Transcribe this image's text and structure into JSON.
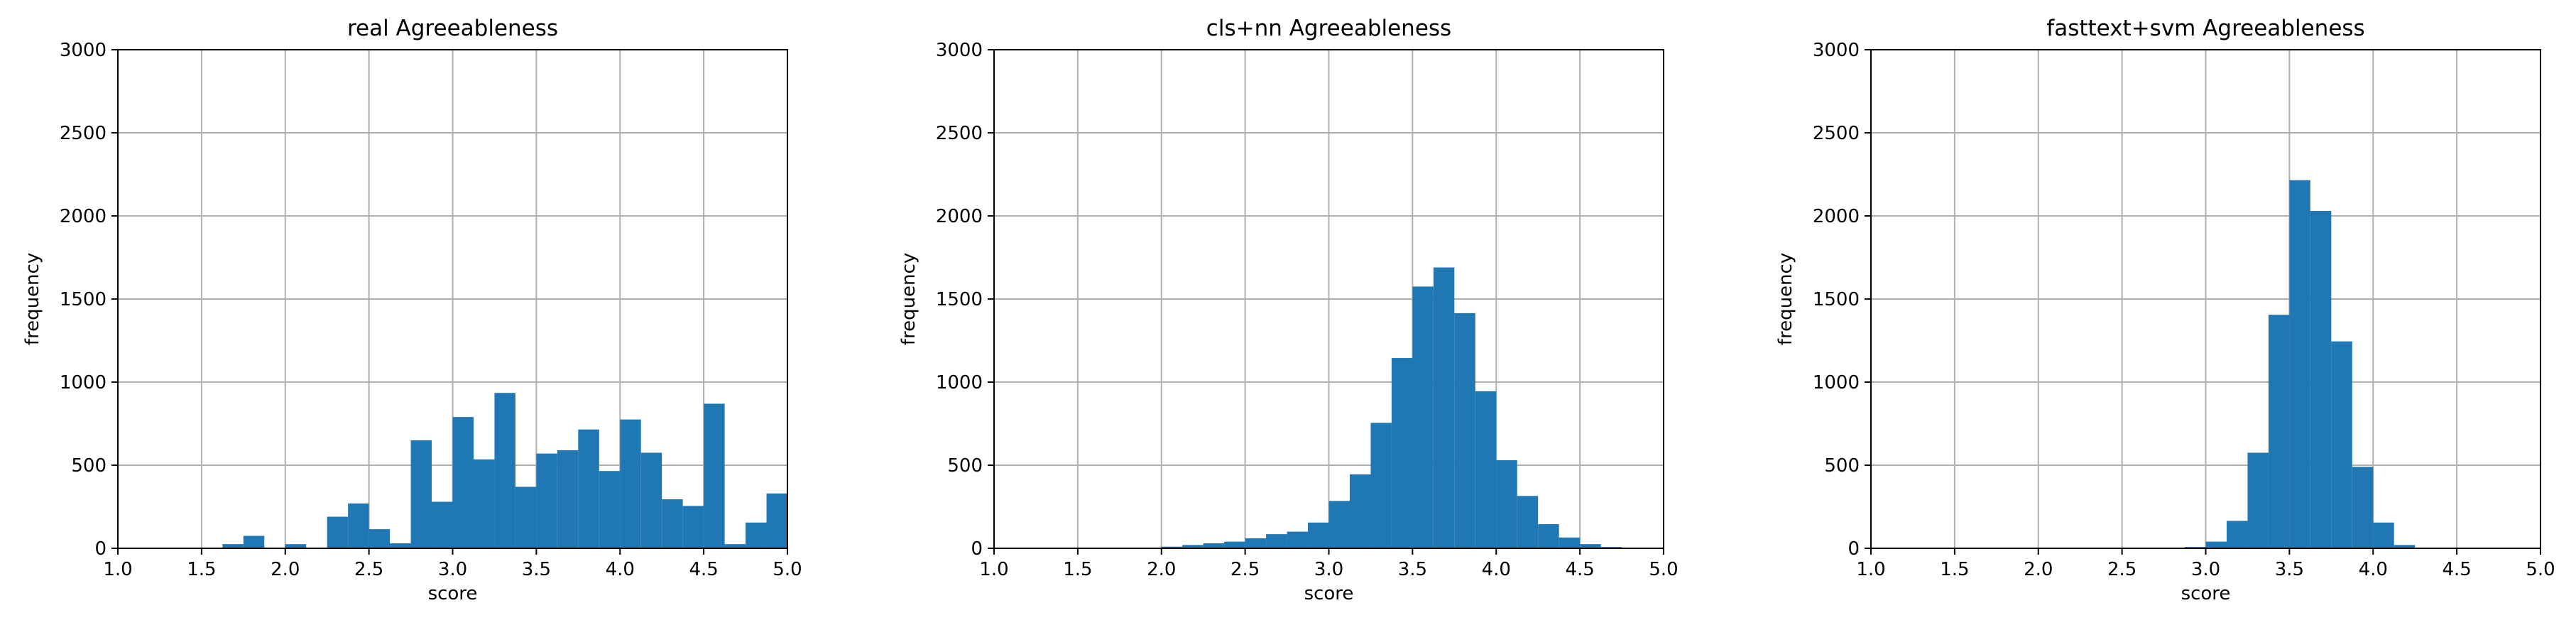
{
  "chart_data": [
    {
      "type": "bar",
      "title": "real Agreeableness",
      "xlabel": "score",
      "ylabel": "frequency",
      "xlim": [
        1.0,
        5.0
      ],
      "ylim": [
        0,
        3000
      ],
      "xticks": [
        "1.0",
        "1.5",
        "2.0",
        "2.5",
        "3.0",
        "3.5",
        "4.0",
        "4.5",
        "5.0"
      ],
      "yticks": [
        "0",
        "500",
        "1000",
        "1500",
        "2000",
        "2500",
        "3000"
      ],
      "grid": true,
      "color": "#1f77b4",
      "bins": [
        {
          "x0": 1.625,
          "x1": 1.75,
          "value": 25
        },
        {
          "x0": 1.75,
          "x1": 1.875,
          "value": 75
        },
        {
          "x0": 2.0,
          "x1": 2.125,
          "value": 25
        },
        {
          "x0": 2.25,
          "x1": 2.375,
          "value": 190
        },
        {
          "x0": 2.375,
          "x1": 2.5,
          "value": 270
        },
        {
          "x0": 2.5,
          "x1": 2.625,
          "value": 115
        },
        {
          "x0": 2.625,
          "x1": 2.75,
          "value": 30
        },
        {
          "x0": 2.75,
          "x1": 2.875,
          "value": 650
        },
        {
          "x0": 2.875,
          "x1": 3.0,
          "value": 280
        },
        {
          "x0": 3.0,
          "x1": 3.125,
          "value": 790
        },
        {
          "x0": 3.125,
          "x1": 3.25,
          "value": 535
        },
        {
          "x0": 3.25,
          "x1": 3.375,
          "value": 935
        },
        {
          "x0": 3.375,
          "x1": 3.5,
          "value": 370
        },
        {
          "x0": 3.5,
          "x1": 3.625,
          "value": 570
        },
        {
          "x0": 3.625,
          "x1": 3.75,
          "value": 590
        },
        {
          "x0": 3.75,
          "x1": 3.875,
          "value": 715
        },
        {
          "x0": 3.875,
          "x1": 4.0,
          "value": 465
        },
        {
          "x0": 4.0,
          "x1": 4.125,
          "value": 775
        },
        {
          "x0": 4.125,
          "x1": 4.25,
          "value": 575
        },
        {
          "x0": 4.25,
          "x1": 4.375,
          "value": 295
        },
        {
          "x0": 4.375,
          "x1": 4.5,
          "value": 255
        },
        {
          "x0": 4.5,
          "x1": 4.625,
          "value": 870
        },
        {
          "x0": 4.625,
          "x1": 4.75,
          "value": 25
        },
        {
          "x0": 4.75,
          "x1": 4.875,
          "value": 155
        },
        {
          "x0": 4.875,
          "x1": 5.0,
          "value": 330
        }
      ]
    },
    {
      "type": "bar",
      "title": "cls+nn Agreeableness",
      "xlabel": "score",
      "ylabel": "frequency",
      "xlim": [
        1.0,
        5.0
      ],
      "ylim": [
        0,
        3000
      ],
      "xticks": [
        "1.0",
        "1.5",
        "2.0",
        "2.5",
        "3.0",
        "3.5",
        "4.0",
        "4.5",
        "5.0"
      ],
      "yticks": [
        "0",
        "500",
        "1000",
        "1500",
        "2000",
        "2500",
        "3000"
      ],
      "grid": true,
      "color": "#1f77b4",
      "bins": [
        {
          "x0": 2.0,
          "x1": 2.125,
          "value": 10
        },
        {
          "x0": 2.125,
          "x1": 2.25,
          "value": 20
        },
        {
          "x0": 2.25,
          "x1": 2.375,
          "value": 30
        },
        {
          "x0": 2.375,
          "x1": 2.5,
          "value": 40
        },
        {
          "x0": 2.5,
          "x1": 2.625,
          "value": 60
        },
        {
          "x0": 2.625,
          "x1": 2.75,
          "value": 85
        },
        {
          "x0": 2.75,
          "x1": 2.875,
          "value": 100
        },
        {
          "x0": 2.875,
          "x1": 3.0,
          "value": 155
        },
        {
          "x0": 3.0,
          "x1": 3.125,
          "value": 285
        },
        {
          "x0": 3.125,
          "x1": 3.25,
          "value": 445
        },
        {
          "x0": 3.25,
          "x1": 3.375,
          "value": 755
        },
        {
          "x0": 3.375,
          "x1": 3.5,
          "value": 1145
        },
        {
          "x0": 3.5,
          "x1": 3.625,
          "value": 1575
        },
        {
          "x0": 3.625,
          "x1": 3.75,
          "value": 1690
        },
        {
          "x0": 3.75,
          "x1": 3.875,
          "value": 1415
        },
        {
          "x0": 3.875,
          "x1": 4.0,
          "value": 945
        },
        {
          "x0": 4.0,
          "x1": 4.125,
          "value": 530
        },
        {
          "x0": 4.125,
          "x1": 4.25,
          "value": 315
        },
        {
          "x0": 4.25,
          "x1": 4.375,
          "value": 145
        },
        {
          "x0": 4.375,
          "x1": 4.5,
          "value": 65
        },
        {
          "x0": 4.5,
          "x1": 4.625,
          "value": 25
        },
        {
          "x0": 4.625,
          "x1": 4.75,
          "value": 8
        }
      ]
    },
    {
      "type": "bar",
      "title": "fasttext+svm Agreeableness",
      "xlabel": "score",
      "ylabel": "frequency",
      "xlim": [
        1.0,
        5.0
      ],
      "ylim": [
        0,
        3000
      ],
      "xticks": [
        "1.0",
        "1.5",
        "2.0",
        "2.5",
        "3.0",
        "3.5",
        "4.0",
        "4.5",
        "5.0"
      ],
      "yticks": [
        "0",
        "500",
        "1000",
        "1500",
        "2000",
        "2500",
        "3000"
      ],
      "grid": true,
      "color": "#1f77b4",
      "bins": [
        {
          "x0": 2.875,
          "x1": 3.0,
          "value": 8
        },
        {
          "x0": 3.0,
          "x1": 3.125,
          "value": 40
        },
        {
          "x0": 3.125,
          "x1": 3.25,
          "value": 165
        },
        {
          "x0": 3.25,
          "x1": 3.375,
          "value": 575
        },
        {
          "x0": 3.375,
          "x1": 3.5,
          "value": 1405
        },
        {
          "x0": 3.5,
          "x1": 3.625,
          "value": 2215
        },
        {
          "x0": 3.625,
          "x1": 3.75,
          "value": 2030
        },
        {
          "x0": 3.75,
          "x1": 3.875,
          "value": 1245
        },
        {
          "x0": 3.875,
          "x1": 4.0,
          "value": 490
        },
        {
          "x0": 4.0,
          "x1": 4.125,
          "value": 155
        },
        {
          "x0": 4.125,
          "x1": 4.25,
          "value": 20
        }
      ]
    }
  ]
}
